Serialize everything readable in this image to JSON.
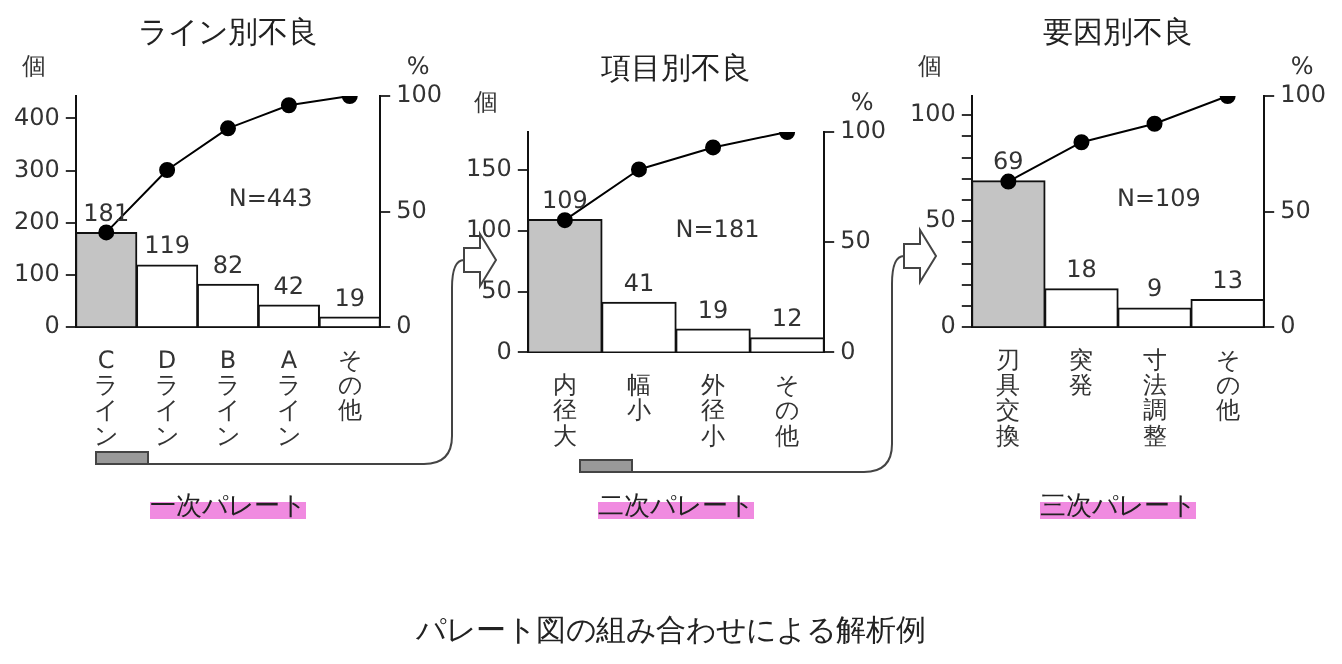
{
  "chart_data": [
    {
      "type": "bar",
      "title": "ライン別不良",
      "ylabel": "個",
      "y2label": "%",
      "categories": [
        "Cライン",
        "Dライン",
        "Bライン",
        "Aライン",
        "その他"
      ],
      "series": [
        {
          "colors": [
            "#c4c4c4",
            "#ffffff",
            "#ffffff",
            "#ffffff",
            "#ffffff"
          ],
          "values": [
            181,
            119,
            82,
            42,
            19
          ],
          "value_labels": [
            "181",
            "119",
            "82",
            "42",
            "19"
          ]
        },
        {
          "type": "line",
          "axis": "y2",
          "color": "#000000",
          "values": [
            41,
            68,
            86,
            96,
            100
          ]
        }
      ],
      "ylim": [
        0,
        443
      ],
      "yticks": [
        0,
        100,
        200,
        300,
        400
      ],
      "y2lim": [
        0,
        100
      ],
      "y2ticks": [
        0,
        50,
        100
      ],
      "marker": "circle",
      "line_style": "solid",
      "grid": false,
      "legend": false,
      "annotations": [
        "N=443",
        "一次パレート"
      ]
    },
    {
      "type": "bar",
      "title": "項目別不良",
      "ylabel": "個",
      "y2label": "%",
      "categories": [
        "内径大",
        "幅小",
        "外径小",
        "その他"
      ],
      "series": [
        {
          "colors": [
            "#c4c4c4",
            "#ffffff",
            "#ffffff",
            "#ffffff"
          ],
          "values": [
            109,
            41,
            19,
            12
          ],
          "value_labels": [
            "109",
            "41",
            "19",
            "12"
          ]
        },
        {
          "type": "line",
          "axis": "y2",
          "color": "#000000",
          "values": [
            60,
            83,
            93,
            100
          ]
        }
      ],
      "ylim": [
        0,
        181
      ],
      "yticks": [
        0,
        50,
        100,
        150
      ],
      "y2lim": [
        0,
        100
      ],
      "y2ticks": [
        0,
        50,
        100
      ],
      "marker": "circle",
      "line_style": "solid",
      "grid": false,
      "legend": false,
      "annotations": [
        "N=181",
        "二次パレート",
        "パレート図の組み合わせによる解析例"
      ]
    },
    {
      "type": "bar",
      "title": "要因別不良",
      "ylabel": "個",
      "y2label": "%",
      "categories": [
        "刃具交換",
        "突発",
        "寸法調整",
        "その他"
      ],
      "series": [
        {
          "colors": [
            "#c4c4c4",
            "#ffffff",
            "#ffffff",
            "#ffffff"
          ],
          "values": [
            69,
            18,
            9,
            13
          ],
          "value_labels": [
            "69",
            "18",
            "9",
            "13"
          ]
        },
        {
          "type": "line",
          "axis": "y2",
          "color": "#000000",
          "values": [
            63,
            80,
            88,
            100
          ]
        }
      ],
      "ylim": [
        0,
        109
      ],
      "yticks": [
        0,
        {
          "value": 10,
          "label": null
        },
        {
          "value": 20,
          "label": null
        },
        {
          "value": 30,
          "label": null
        },
        {
          "value": 40,
          "label": null
        },
        50,
        {
          "value": 60,
          "label": null
        },
        {
          "value": 70,
          "label": null
        },
        {
          "value": 80,
          "label": null
        },
        {
          "value": 90,
          "label": null
        },
        100
      ],
      "y2lim": [
        0,
        100
      ],
      "y2ticks": [
        0,
        50,
        100
      ],
      "marker": "circle",
      "line_style": "solid",
      "grid": false,
      "legend": false,
      "annotations": [
        "N=109",
        "三次パレート"
      ]
    }
  ]
}
